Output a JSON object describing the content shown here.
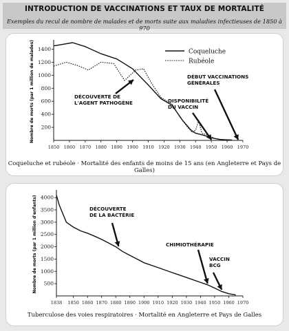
{
  "header": {
    "title": "INTRODUCTION DE VACCINATIONS ET TAUX DE MORTALITÉ",
    "subtitle": "Exemples du recul de nombre de malades et de morts suite aux maladies infectieuses de 1850 à 970"
  },
  "chart_data": [
    {
      "type": "line",
      "caption": "Coqueluche et rubéole · Mortalité des enfants de moins de 15 ans (en Angleterre et Pays de Galles)",
      "ylabel": "Nombre de morts (par 1 million de malades)",
      "xlim": [
        1850,
        1970
      ],
      "ylim": [
        0,
        1500
      ],
      "x_ticks": [
        1850,
        1860,
        1870,
        1880,
        1890,
        1900,
        1910,
        1920,
        1930,
        1940,
        1950,
        1960,
        1970
      ],
      "y_ticks": [
        200,
        400,
        600,
        800,
        1000,
        1200,
        1400
      ],
      "legend_position": "top-right",
      "series": [
        {
          "name": "Coqueluche",
          "style": "solid",
          "x": [
            1850,
            1862,
            1870,
            1880,
            1890,
            1900,
            1910,
            1918,
            1925,
            1932,
            1937,
            1940,
            1945,
            1950,
            1955,
            1960,
            1963
          ],
          "values": [
            1450,
            1500,
            1440,
            1330,
            1250,
            1100,
            850,
            640,
            540,
            300,
            160,
            110,
            80,
            40,
            15,
            8,
            5
          ]
        },
        {
          "name": "Rubéole",
          "style": "dotted",
          "x": [
            1850,
            1858,
            1865,
            1872,
            1880,
            1888,
            1895,
            1902,
            1907,
            1912,
            1918,
            1925,
            1930,
            1935,
            1938,
            1940,
            1942,
            1944,
            1948,
            1952,
            1958,
            1962
          ],
          "values": [
            1140,
            1200,
            1150,
            1080,
            1200,
            1180,
            920,
            1080,
            1100,
            880,
            660,
            560,
            360,
            200,
            120,
            160,
            300,
            110,
            80,
            30,
            10,
            5
          ]
        }
      ],
      "annotations": [
        {
          "text": [
            "DÉCOUVERTE DE",
            "L'AGENT PATHOGÈNE"
          ],
          "x": 1905
        },
        {
          "text": [
            "DISPONIBILITÉ",
            "DU VACCIN"
          ],
          "x": 1950
        },
        {
          "text": [
            "DÉBUT VACCINATIONS",
            "GÉNÉRALES"
          ],
          "x": 1967
        }
      ]
    },
    {
      "type": "line",
      "caption": "Tuberculose des voies respiratoires · Mortalité en Angleterre et Pays de Galles",
      "ylabel": "Nombre de morts (par 1 million d'enfants)",
      "xlim": [
        1838,
        1970
      ],
      "ylim": [
        0,
        4200
      ],
      "x_ticks": [
        1838,
        1850,
        1860,
        1870,
        1880,
        1890,
        1900,
        1910,
        1920,
        1930,
        1940,
        1950,
        1960,
        1970
      ],
      "y_ticks": [
        500,
        1000,
        1500,
        2000,
        2500,
        3000,
        3500,
        4000
      ],
      "series": [
        {
          "name": "Tuberculose",
          "style": "solid",
          "x": [
            1838,
            1840,
            1845,
            1850,
            1855,
            1860,
            1865,
            1870,
            1875,
            1880,
            1885,
            1890,
            1895,
            1900,
            1910,
            1920,
            1930,
            1940,
            1945,
            1950,
            1955,
            1960,
            1965
          ],
          "values": [
            4100,
            3700,
            3000,
            2800,
            2650,
            2550,
            2430,
            2300,
            2150,
            2000,
            1800,
            1650,
            1500,
            1350,
            1150,
            950,
            750,
            550,
            450,
            320,
            180,
            90,
            40
          ]
        }
      ],
      "annotations": [
        {
          "text": [
            "DÉCOUVERTE",
            "DE LA BACTÉRIE"
          ],
          "x": 1882
        },
        {
          "text": [
            "CHIMIOTHÉRAPIE"
          ],
          "x": 1945
        },
        {
          "text": [
            "VACCIN",
            "BCG"
          ],
          "x": 1955
        }
      ]
    }
  ]
}
